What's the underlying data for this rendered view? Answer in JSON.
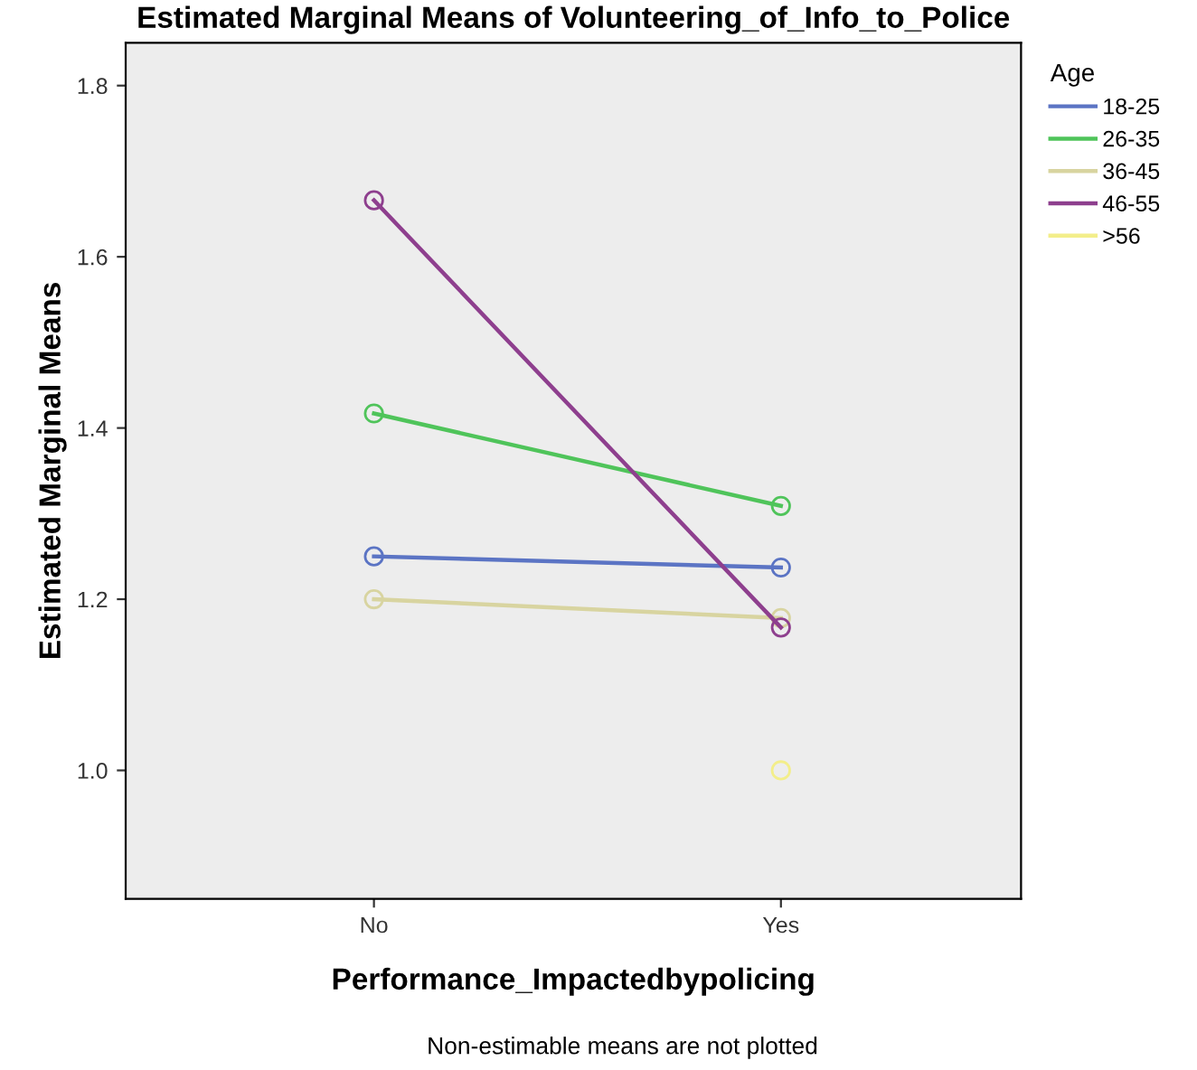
{
  "chart_data": {
    "type": "line",
    "title": "Estimated Marginal Means of Volunteering_of_Info_to_Police",
    "xlabel": "Performance_Impactedbypolicing",
    "ylabel": "Estimated Marginal Means",
    "legend_title": "Age",
    "categories": [
      "No",
      "Yes"
    ],
    "series": [
      {
        "name": "18-25",
        "color": "#5b74c4",
        "values": [
          1.25,
          1.237
        ]
      },
      {
        "name": "26-35",
        "color": "#4fc45a",
        "values": [
          1.417,
          1.309
        ]
      },
      {
        "name": "36-45",
        "color": "#d8d4a0",
        "values": [
          1.2,
          1.178
        ]
      },
      {
        "name": "46-55",
        "color": "#8e3f8e",
        "values": [
          1.666,
          1.167
        ]
      },
      {
        "name": ">56",
        "color": "#f3ee8a",
        "values": [
          null,
          1.0
        ]
      }
    ],
    "ylim": [
      0.85,
      1.85
    ],
    "yticks": [
      {
        "value": 1.0,
        "label": "1.0"
      },
      {
        "value": 1.2,
        "label": "1.2"
      },
      {
        "value": 1.4,
        "label": "1.4"
      },
      {
        "value": 1.6,
        "label": "1.6"
      },
      {
        "value": 1.8,
        "label": "1.8"
      }
    ],
    "marker": "circle",
    "grid": false,
    "legend": "right",
    "annotations": [
      "Non-estimable means are not plotted"
    ]
  }
}
